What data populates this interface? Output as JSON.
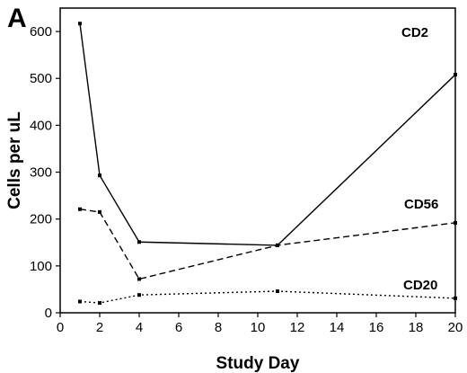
{
  "panel_label": "A",
  "chart_data": {
    "type": "line",
    "xlabel": "Study Day",
    "ylabel": "Cells per uL",
    "xlim": [
      0,
      20
    ],
    "ylim": [
      0,
      650
    ],
    "xticks": [
      "0",
      "2",
      "4",
      "6",
      "8",
      "10",
      "12",
      "14",
      "16",
      "18",
      "20"
    ],
    "yticks": [
      "0",
      "100",
      "200",
      "300",
      "400",
      "500",
      "600"
    ],
    "grid": false,
    "series": [
      {
        "name": "CD2",
        "style": "solid",
        "color": "#000000",
        "x": [
          1,
          2,
          4,
          11,
          20
        ],
        "y": [
          617,
          293,
          151,
          144,
          508
        ]
      },
      {
        "name": "CD56",
        "style": "dashed",
        "color": "#000000",
        "x": [
          1,
          2,
          4,
          11,
          20
        ],
        "y": [
          221,
          215,
          72,
          144,
          192
        ]
      },
      {
        "name": "CD20",
        "style": "dotted",
        "color": "#000000",
        "x": [
          1,
          2,
          4,
          11,
          20
        ],
        "y": [
          24,
          21,
          38,
          46,
          31
        ]
      }
    ]
  }
}
